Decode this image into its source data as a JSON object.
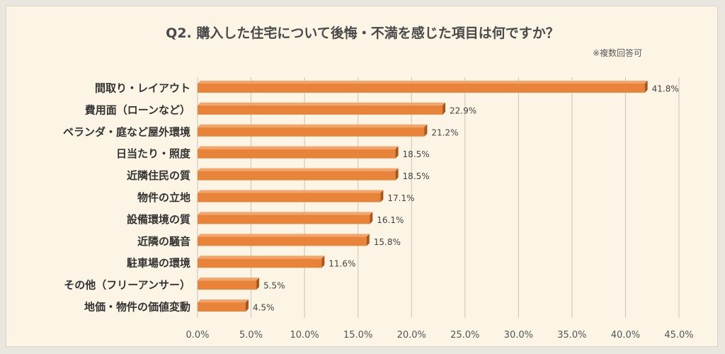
{
  "chart_data": {
    "type": "bar",
    "orientation": "horizontal",
    "title": "Q2. 購入した住宅について後悔・不満を感じた項目は何ですか？",
    "note": "※複数回答可",
    "categories": [
      "間取り・レイアウト",
      "費用面（ローンなど）",
      "ベランダ・庭など屋外環境",
      "日当たり・照度",
      "近隣住民の質",
      "物件の立地",
      "設備環境の質",
      "近隣の騒音",
      "駐車場の環境",
      "その他（フリーアンサー）",
      "地価・物件の価値変動"
    ],
    "values": [
      41.8,
      22.9,
      21.2,
      18.5,
      18.5,
      17.1,
      16.1,
      15.8,
      11.6,
      5.5,
      4.5
    ],
    "value_labels": [
      "41.8%",
      "22.9%",
      "21.2%",
      "18.5%",
      "18.5%",
      "17.1%",
      "16.1%",
      "15.8%",
      "11.6%",
      "5.5%",
      "4.5%"
    ],
    "x_ticks": [
      "0.0%",
      "5.0%",
      "10.0%",
      "15.0%",
      "20.0%",
      "25.0%",
      "30.0%",
      "35.0%",
      "40.0%",
      "45.0%"
    ],
    "xlim": [
      0,
      45
    ],
    "grid": true,
    "legend": "none",
    "bar_color": "#e8843a"
  }
}
